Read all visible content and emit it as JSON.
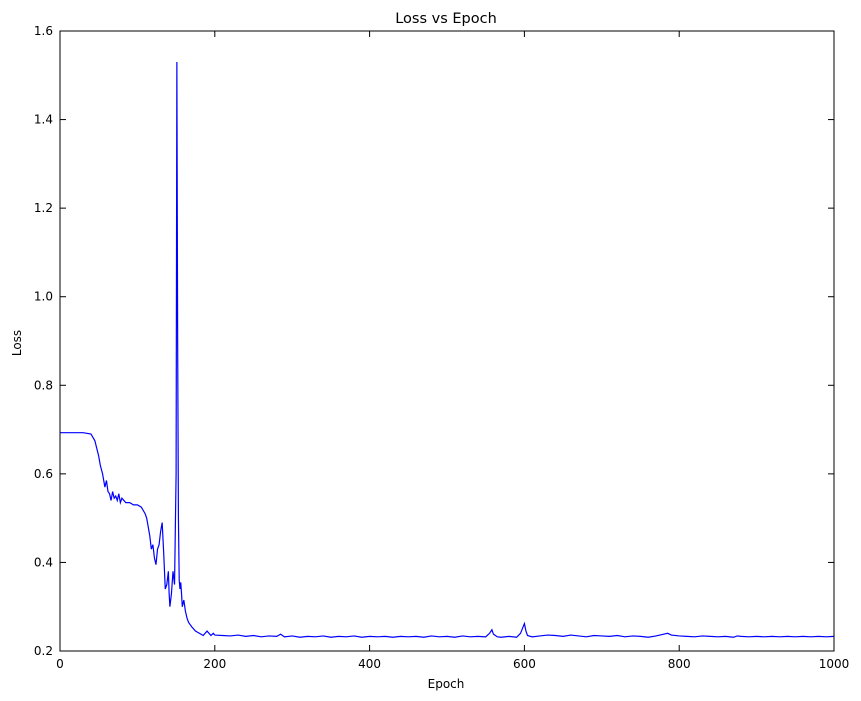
{
  "chart_data": {
    "type": "line",
    "title": "Loss vs Epoch",
    "xlabel": "Epoch",
    "ylabel": "Loss",
    "xlim": [
      0,
      1000
    ],
    "ylim": [
      0.2,
      1.6
    ],
    "xticks": [
      0,
      200,
      400,
      600,
      800,
      1000
    ],
    "yticks": [
      0.2,
      0.4,
      0.6,
      0.8,
      1.0,
      1.2,
      1.4,
      1.6
    ],
    "xtick_labels": [
      "0",
      "200",
      "400",
      "600",
      "800",
      "1000"
    ],
    "ytick_labels": [
      "0.2",
      "0.4",
      "0.6",
      "0.8",
      "1.0",
      "1.2",
      "1.4",
      "1.6"
    ],
    "grid": false,
    "series": [
      {
        "color": "#0000ff",
        "x": [
          0,
          10,
          20,
          30,
          40,
          45,
          50,
          52,
          55,
          58,
          60,
          62,
          64,
          66,
          68,
          70,
          72,
          74,
          76,
          78,
          80,
          85,
          90,
          95,
          100,
          105,
          110,
          112,
          114,
          116,
          118,
          120,
          122,
          124,
          126,
          128,
          130,
          132,
          134,
          136,
          138,
          140,
          141,
          142,
          144,
          146,
          148,
          150,
          151,
          152,
          153,
          154,
          155,
          156,
          157,
          158,
          160,
          162,
          164,
          166,
          168,
          170,
          175,
          180,
          185,
          190,
          195,
          198,
          200,
          210,
          220,
          230,
          240,
          250,
          260,
          270,
          280,
          285,
          290,
          300,
          310,
          320,
          330,
          340,
          350,
          360,
          370,
          380,
          390,
          400,
          410,
          420,
          430,
          440,
          450,
          460,
          470,
          480,
          490,
          500,
          510,
          520,
          530,
          540,
          550,
          555,
          558,
          560,
          565,
          570,
          580,
          590,
          595,
          600,
          602,
          604,
          610,
          620,
          630,
          640,
          650,
          660,
          670,
          680,
          690,
          700,
          710,
          720,
          730,
          740,
          750,
          760,
          770,
          780,
          785,
          790,
          800,
          810,
          820,
          830,
          840,
          850,
          860,
          870,
          875,
          880,
          890,
          900,
          910,
          920,
          930,
          940,
          950,
          960,
          970,
          980,
          990,
          1000
        ],
        "y": [
          0.693,
          0.693,
          0.693,
          0.693,
          0.69,
          0.675,
          0.64,
          0.62,
          0.6,
          0.57,
          0.585,
          0.56,
          0.555,
          0.54,
          0.56,
          0.545,
          0.55,
          0.54,
          0.555,
          0.535,
          0.545,
          0.535,
          0.535,
          0.53,
          0.53,
          0.525,
          0.51,
          0.5,
          0.48,
          0.46,
          0.43,
          0.44,
          0.41,
          0.395,
          0.43,
          0.44,
          0.47,
          0.49,
          0.42,
          0.34,
          0.35,
          0.38,
          0.33,
          0.3,
          0.33,
          0.38,
          0.35,
          0.6,
          1.53,
          0.9,
          0.5,
          0.36,
          0.34,
          0.355,
          0.33,
          0.3,
          0.315,
          0.29,
          0.275,
          0.265,
          0.26,
          0.255,
          0.245,
          0.24,
          0.235,
          0.245,
          0.235,
          0.24,
          0.236,
          0.235,
          0.234,
          0.236,
          0.233,
          0.235,
          0.232,
          0.234,
          0.233,
          0.238,
          0.232,
          0.234,
          0.231,
          0.233,
          0.232,
          0.234,
          0.231,
          0.233,
          0.232,
          0.234,
          0.231,
          0.233,
          0.232,
          0.233,
          0.231,
          0.233,
          0.232,
          0.233,
          0.231,
          0.234,
          0.232,
          0.233,
          0.231,
          0.234,
          0.232,
          0.233,
          0.232,
          0.24,
          0.248,
          0.238,
          0.232,
          0.231,
          0.233,
          0.231,
          0.24,
          0.262,
          0.245,
          0.235,
          0.232,
          0.234,
          0.236,
          0.235,
          0.233,
          0.236,
          0.234,
          0.232,
          0.235,
          0.234,
          0.233,
          0.235,
          0.232,
          0.234,
          0.233,
          0.231,
          0.234,
          0.238,
          0.24,
          0.236,
          0.234,
          0.233,
          0.232,
          0.234,
          0.233,
          0.232,
          0.233,
          0.231,
          0.234,
          0.233,
          0.232,
          0.233,
          0.232,
          0.233,
          0.232,
          0.233,
          0.232,
          0.233,
          0.232,
          0.233,
          0.232,
          0.233
        ]
      }
    ]
  }
}
